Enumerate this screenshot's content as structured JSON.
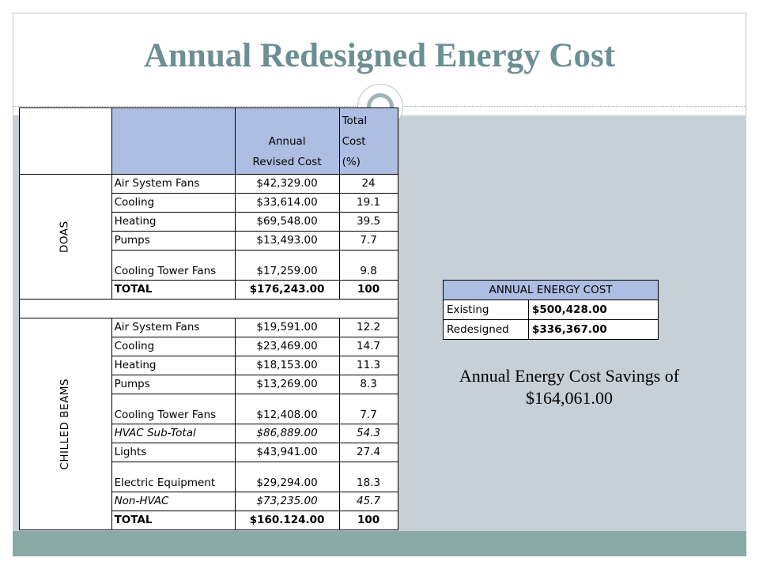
{
  "title": "Annual Redesigned Energy Cost",
  "main_table": {
    "header": {
      "cost_line1": "Annual",
      "cost_line2": "Revised Cost",
      "pct_line1": "Total",
      "pct_line2": "Cost",
      "pct_line3": "(%)"
    },
    "doas": {
      "section_label": "DOAS",
      "rows": [
        {
          "label": "Air System Fans",
          "cost": "$42,329.00",
          "pct": "24"
        },
        {
          "label": "Cooling",
          "cost": "$33,614.00",
          "pct": "19.1"
        },
        {
          "label": "Heating",
          "cost": "$69,548.00",
          "pct": "39.5"
        },
        {
          "label": "Pumps",
          "cost": "$13,493.00",
          "pct": "7.7"
        },
        {
          "label": "Cooling Tower Fans",
          "cost": "$17,259.00",
          "pct": "9.8"
        },
        {
          "label": "TOTAL",
          "cost": "$176,243.00",
          "pct": "100"
        }
      ]
    },
    "chilled_beams": {
      "section_label": "CHILLED BEAMS",
      "rows": [
        {
          "label": "Air System Fans",
          "cost": "$19,591.00",
          "pct": "12.2"
        },
        {
          "label": "Cooling",
          "cost": "$23,469.00",
          "pct": "14.7"
        },
        {
          "label": "Heating",
          "cost": "$18,153.00",
          "pct": "11.3"
        },
        {
          "label": "Pumps",
          "cost": "$13,269.00",
          "pct": "8.3"
        },
        {
          "label": "Cooling Tower Fans",
          "cost": "$12,408.00",
          "pct": "7.7"
        },
        {
          "label": "HVAC Sub-Total",
          "cost": "$86,889.00",
          "pct": "54.3"
        },
        {
          "label": "Lights",
          "cost": "$43,941.00",
          "pct": "27.4"
        },
        {
          "label": "Electric Equipment",
          "cost": "$29,294.00",
          "pct": "18.3"
        },
        {
          "label": "Non-HVAC",
          "cost": "$73,235.00",
          "pct": "45.7"
        },
        {
          "label": "TOTAL",
          "cost": "$160.124.00",
          "pct": "100"
        }
      ]
    }
  },
  "energy_table": {
    "header": "ANNUAL ENERGY COST",
    "rows": [
      {
        "label": "Existing",
        "value": "$500,428.00"
      },
      {
        "label": "Redesigned",
        "value": "$336,367.00"
      }
    ]
  },
  "savings": {
    "line1": "Annual Energy Cost Savings of",
    "line2": "$164,061.00"
  },
  "colors": {
    "title": "#6b8f93",
    "table_header": "#aebde2",
    "content_bg": "#c7d0d6",
    "bottom_band": "#8aaaa8"
  }
}
